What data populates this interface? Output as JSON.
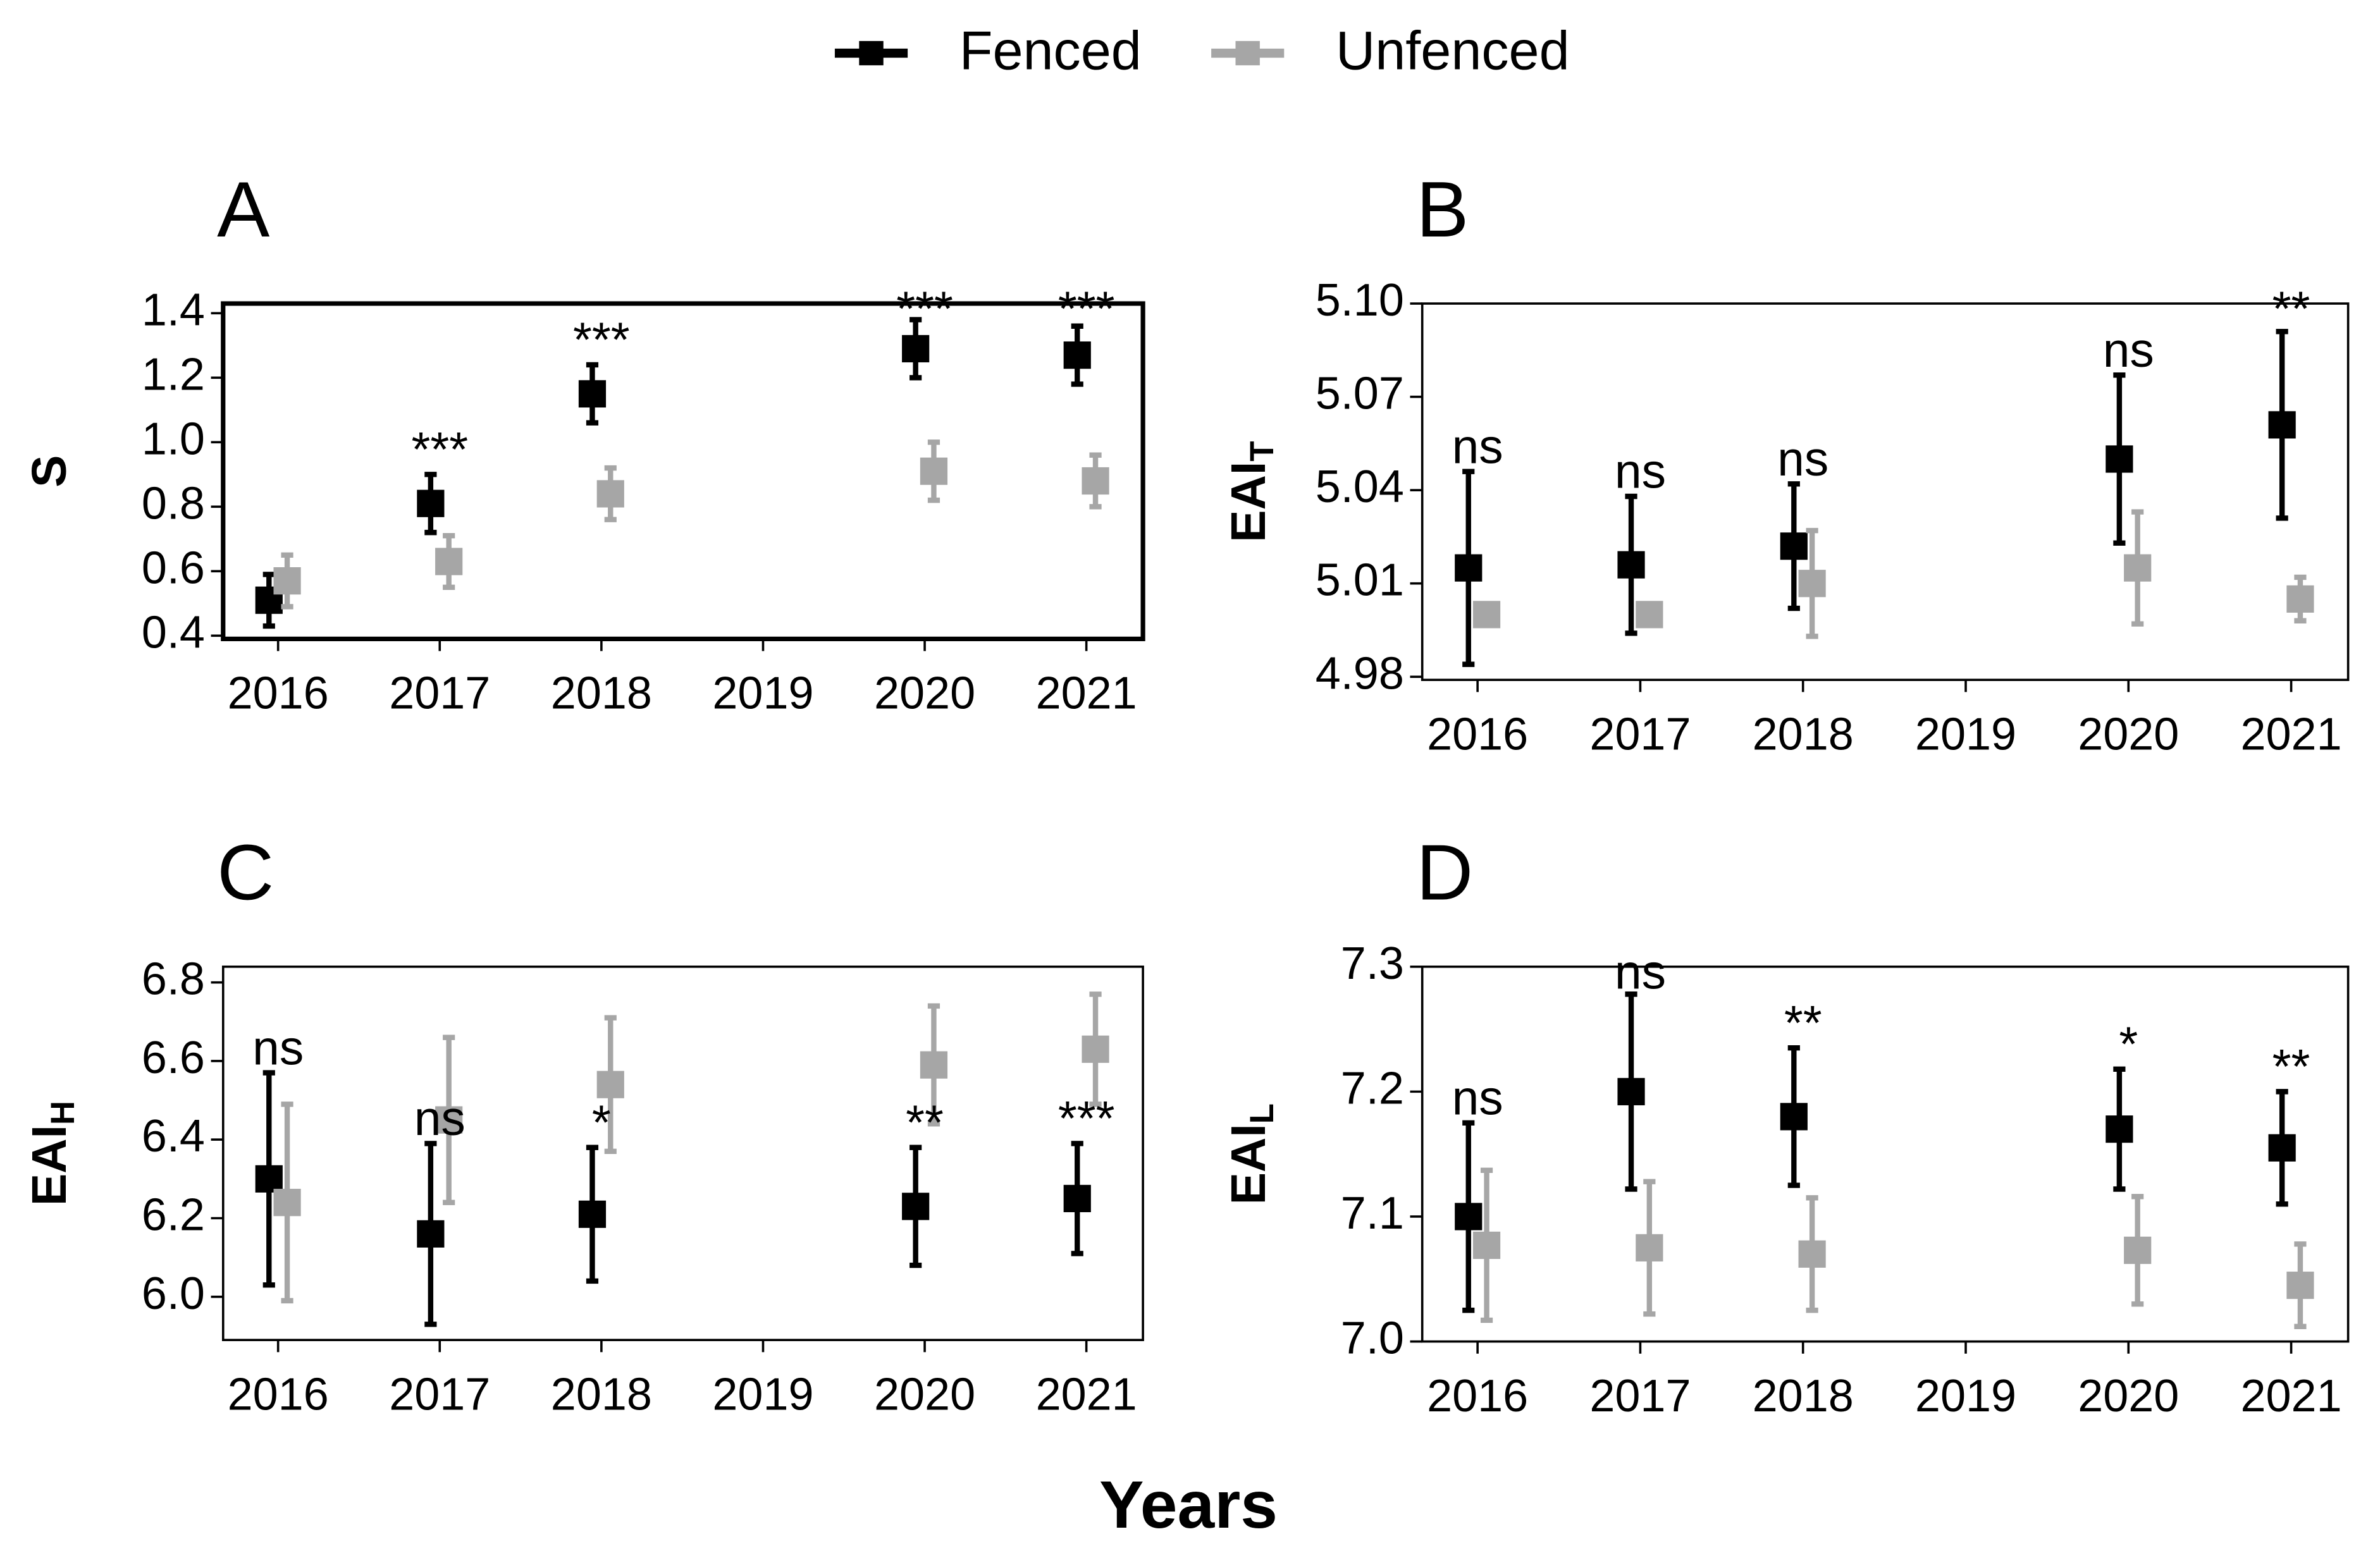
{
  "figure": {
    "xlabel": "Years"
  },
  "chart_data": [
    {
      "type": "scatter",
      "title": "A",
      "ylabel": "S",
      "x": [
        2016,
        2017,
        2018,
        2020,
        2021
      ],
      "xlim": [
        2015.66,
        2021.35
      ],
      "xticks": [
        2016,
        2017,
        2018,
        2019,
        2020,
        2021
      ],
      "ylim": [
        0.39,
        1.43
      ],
      "yticks": [
        0.4,
        0.6,
        0.8,
        {
          "value": 1,
          "label": "1.0"
        },
        1.2,
        1.4
      ],
      "annotations": [
        null,
        "***",
        "***",
        "***",
        "***"
      ],
      "series": [
        {
          "name": "Fenced",
          "color": "#000000",
          "values": [
            0.51,
            0.81,
            1.15,
            1.29,
            1.27
          ],
          "errors": [
            0.08,
            0.09,
            0.09,
            0.09,
            0.09
          ]
        },
        {
          "name": "Unfenced",
          "color": "#a6a6a6",
          "values": [
            0.57,
            0.63,
            0.84,
            0.91,
            0.88
          ],
          "errors": [
            0.08,
            0.08,
            0.08,
            0.09,
            0.08
          ]
        }
      ]
    },
    {
      "type": "scatter",
      "title": "B",
      "ylabel": "EAI",
      "ylabel_sub": "T",
      "x": [
        2016,
        2017,
        2018,
        2020,
        2021
      ],
      "xlim": [
        2015.66,
        2021.35
      ],
      "xticks": [
        2016,
        2017,
        2018,
        2019,
        2020,
        2021
      ],
      "ylim": [
        4.979,
        5.1
      ],
      "yticks": [
        4.98,
        5.01,
        5.04,
        5.07,
        {
          "value": 5.1,
          "label": "5.10"
        }
      ],
      "annotations": [
        "ns",
        "ns",
        "ns",
        "ns",
        "**"
      ],
      "series": [
        {
          "name": "Fenced",
          "color": "#000000",
          "values": [
            5.015,
            5.016,
            5.022,
            5.05,
            5.061
          ],
          "errors": [
            0.031,
            0.022,
            0.02,
            0.027,
            0.03
          ]
        },
        {
          "name": "Unfenced",
          "color": "#a6a6a6",
          "values": [
            5.0,
            5.0,
            5.01,
            5.015,
            5.005
          ],
          "errors": [
            0.002,
            0.002,
            0.017,
            0.018,
            0.007
          ]
        }
      ]
    },
    {
      "type": "scatter",
      "title": "C",
      "ylabel": "EAI",
      "ylabel_sub": "H",
      "x": [
        2016,
        2017,
        2018,
        2020,
        2021
      ],
      "xlim": [
        2015.66,
        2021.35
      ],
      "xticks": [
        2016,
        2017,
        2018,
        2019,
        2020,
        2021
      ],
      "ylim": [
        5.89,
        6.84
      ],
      "yticks": [
        {
          "value": 6,
          "label": "6.0"
        },
        6.2,
        6.4,
        6.6,
        6.8
      ],
      "annotations": [
        "ns",
        "ns",
        "*",
        "**",
        "***"
      ],
      "series": [
        {
          "name": "Fenced",
          "color": "#000000",
          "values": [
            6.3,
            6.16,
            6.21,
            6.23,
            6.25
          ],
          "errors": [
            0.27,
            0.23,
            0.17,
            0.15,
            0.14
          ]
        },
        {
          "name": "Unfenced",
          "color": "#a6a6a6",
          "values": [
            6.24,
            6.45,
            6.54,
            6.59,
            6.63
          ],
          "errors": [
            0.25,
            0.21,
            0.17,
            0.15,
            0.14
          ]
        }
      ]
    },
    {
      "type": "scatter",
      "title": "D",
      "ylabel": "EAI",
      "ylabel_sub": "L",
      "x": [
        2016,
        2017,
        2018,
        2020,
        2021
      ],
      "xlim": [
        2015.66,
        2021.35
      ],
      "xticks": [
        2016,
        2017,
        2018,
        2019,
        2020,
        2021
      ],
      "ylim": [
        7.0,
        7.3
      ],
      "yticks": [
        {
          "value": 7,
          "label": "7.0"
        },
        7.1,
        7.2,
        7.3
      ],
      "annotations": [
        "ns",
        "ns",
        "**",
        "*",
        "**"
      ],
      "series": [
        {
          "name": "Fenced",
          "color": "#000000",
          "values": [
            7.1,
            7.2,
            7.18,
            7.17,
            7.155
          ],
          "errors": [
            0.075,
            0.078,
            0.055,
            0.048,
            0.045
          ]
        },
        {
          "name": "Unfenced",
          "color": "#a6a6a6",
          "values": [
            7.077,
            7.075,
            7.07,
            7.073,
            7.045
          ],
          "errors": [
            0.06,
            0.053,
            0.045,
            0.043,
            0.033
          ]
        }
      ]
    }
  ]
}
